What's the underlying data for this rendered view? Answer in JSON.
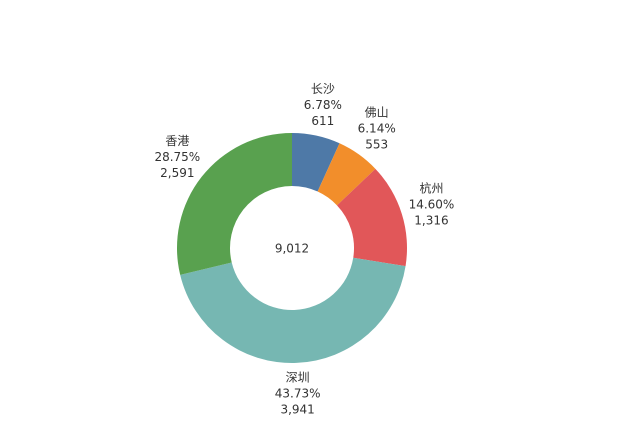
{
  "chart_data": {
    "type": "donut",
    "categories": [
      "长沙",
      "佛山",
      "杭州",
      "深圳",
      "香港"
    ],
    "values": [
      611,
      553,
      1316,
      3941,
      2591
    ],
    "value_labels": [
      "611",
      "553",
      "1,316",
      "3,941",
      "2,591"
    ],
    "percents": [
      6.78,
      6.14,
      14.6,
      43.73,
      28.75
    ],
    "percent_labels": [
      "6.78%",
      "6.14%",
      "14.60%",
      "43.73%",
      "28.75%"
    ],
    "colors": [
      "#4e79a7",
      "#f28e2b",
      "#e15759",
      "#76b7b2",
      "#59a14f"
    ],
    "total": 9012,
    "total_label": "9,012"
  }
}
